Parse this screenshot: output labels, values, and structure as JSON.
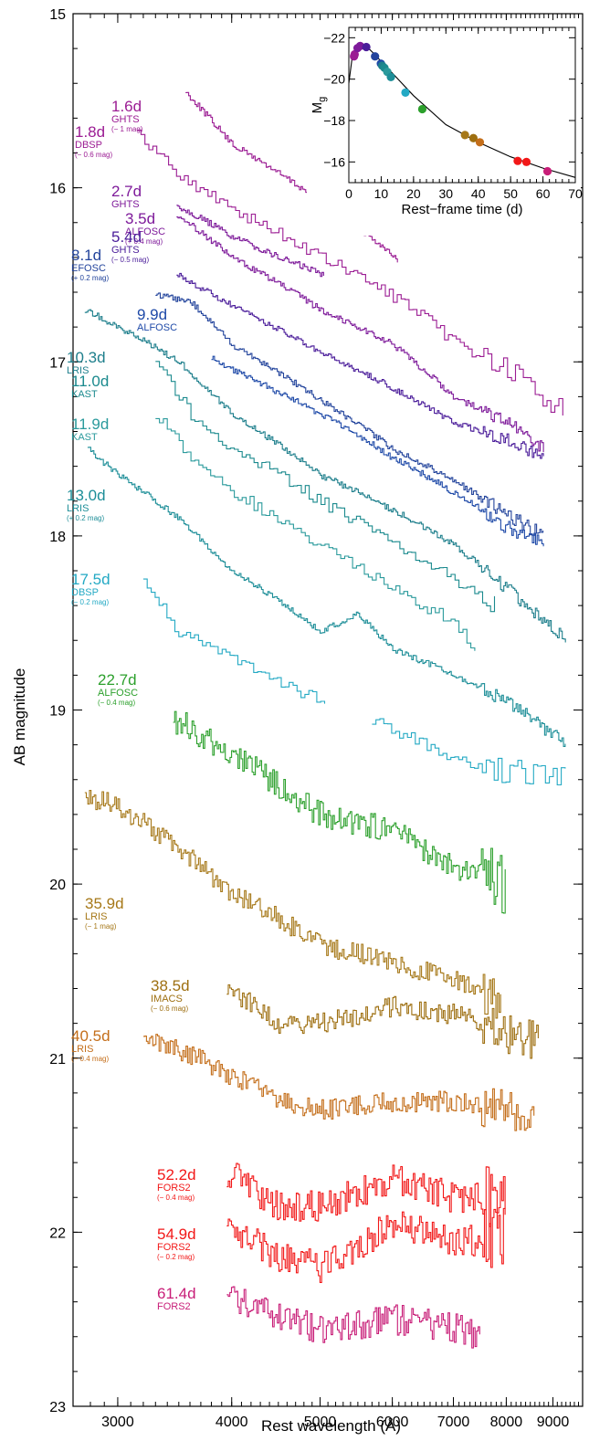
{
  "chart_data": [
    {
      "type": "line",
      "xlabel": "Rest wavelength (Å)",
      "ylabel": "AB magnitude",
      "xscale": "log",
      "xlim": [
        2680,
        9700
      ],
      "ylim": [
        23,
        15
      ],
      "x_ticks": [
        3000,
        4000,
        5000,
        6000,
        7000,
        8000,
        9000
      ],
      "y_ticks": [
        15,
        16,
        17,
        18,
        19,
        20,
        21,
        22,
        23
      ],
      "grid": false,
      "series": [
        {
          "epoch": "1.6d",
          "instrument": "GHTS",
          "offset": "(− 1 mag)",
          "color": "#9b1c93",
          "x": [
            3560,
            4000,
            5000,
            6000,
            6100
          ],
          "y": [
            15.45,
            15.75,
            16.08,
            16.38,
            16.45
          ]
        },
        {
          "epoch": "1.8d",
          "instrument": "DBSP",
          "offset": "(− 0.6 mag)",
          "color": "#9b1c93",
          "x": [
            3150,
            3600,
            4200,
            5000,
            6000,
            7000,
            8000,
            9300
          ],
          "y": [
            15.7,
            15.98,
            16.18,
            16.4,
            16.62,
            16.88,
            17.05,
            17.3
          ]
        },
        {
          "epoch": "2.7d",
          "instrument": "GHTS",
          "offset": "",
          "color": "#7e1a9a",
          "x": [
            3480,
            4000,
            4500,
            5050
          ],
          "y": [
            16.1,
            16.28,
            16.4,
            16.5
          ]
        },
        {
          "epoch": "3.5d",
          "instrument": "ALFOSC",
          "offset": "(+ 0.4 mag)",
          "color": "#7e1a9a",
          "x": [
            3480,
            4000,
            5000,
            6000,
            6500,
            7000,
            8000,
            8800
          ],
          "y": [
            16.15,
            16.4,
            16.7,
            16.9,
            17.05,
            17.2,
            17.35,
            17.5
          ]
        },
        {
          "epoch": "5.4d",
          "instrument": "GHTS",
          "offset": "(− 0.5 mag)",
          "color": "#4b1d9a",
          "x": [
            3480,
            4000,
            5000,
            6000,
            7000,
            8000,
            8800
          ],
          "y": [
            16.5,
            16.68,
            16.95,
            17.15,
            17.35,
            17.45,
            17.55
          ]
        },
        {
          "epoch": "8.1d",
          "instrument": "EFOSC",
          "offset": "(+ 0.2 mag)",
          "color": "#23449c",
          "x": [
            3300,
            3600,
            4000,
            5000,
            6000,
            7000,
            8000,
            8800
          ],
          "y": [
            16.62,
            16.65,
            16.9,
            17.22,
            17.5,
            17.68,
            17.88,
            18.0
          ]
        },
        {
          "epoch": "9.9d",
          "instrument": "ALFOSC",
          "offset": "",
          "color": "#1f4aa8",
          "x": [
            3800,
            4200,
            5000,
            6000,
            7000,
            8000,
            8800
          ],
          "y": [
            16.98,
            17.1,
            17.3,
            17.55,
            17.75,
            17.95,
            18.05
          ]
        },
        {
          "epoch": "10.3d",
          "instrument": "LRIS",
          "offset": "",
          "color": "#1e7f8c",
          "x": [
            2760,
            3000,
            3500,
            4000,
            5000,
            6000,
            7000,
            8000,
            9300
          ],
          "y": [
            16.7,
            16.8,
            17.0,
            17.3,
            17.65,
            17.85,
            18.05,
            18.3,
            18.6
          ]
        },
        {
          "epoch": "11.0d",
          "instrument": "KAST",
          "offset": "",
          "color": "#1b8a8e",
          "x": [
            3300,
            3600,
            4000,
            5000,
            6000,
            7000,
            7800
          ],
          "y": [
            17.0,
            17.3,
            17.5,
            17.8,
            18.05,
            18.25,
            18.4
          ]
        },
        {
          "epoch": "11.9d",
          "instrument": "KAST",
          "offset": "",
          "color": "#2a9a9c",
          "x": [
            3300,
            3600,
            4000,
            5000,
            6000,
            7000,
            7400
          ],
          "y": [
            17.3,
            17.55,
            17.75,
            18.05,
            18.3,
            18.5,
            18.65
          ]
        },
        {
          "epoch": "13.0d",
          "instrument": "LRIS",
          "offset": "(+ 0.2 mag)",
          "color": "#1d8e98",
          "x": [
            2780,
            3000,
            3500,
            4000,
            5000,
            5500,
            6000,
            7000,
            8000,
            9300
          ],
          "y": [
            17.5,
            17.65,
            17.9,
            18.2,
            18.55,
            18.45,
            18.65,
            18.8,
            18.95,
            19.2
          ]
        },
        {
          "epoch": "17.5d",
          "instrument": "DBSP",
          "offset": "(− 0.2 mag)",
          "color": "#23a9c4",
          "x": [
            3200,
            3500,
            4000,
            4500,
            5100
          ],
          "y": [
            18.25,
            18.55,
            18.7,
            18.85,
            18.95
          ]
        },
        {
          "epoch": "17.5d",
          "instrument": "DBSP",
          "offset": "(− 0.2 mag)",
          "color": "#23a9c4",
          "x": [
            5700,
            6500,
            7500,
            8500,
            9300
          ],
          "y": [
            19.05,
            19.2,
            19.35,
            19.35,
            19.4
          ]
        },
        {
          "epoch": "22.7d",
          "instrument": "ALFOSC",
          "offset": "(− 0.4 mag)",
          "color": "#2ca02c",
          "x": [
            3450,
            4000,
            5000,
            6000,
            7000,
            8000
          ],
          "y": [
            19.05,
            19.25,
            19.6,
            19.7,
            19.9,
            20.0
          ]
        },
        {
          "epoch": "35.9d",
          "instrument": "LRIS",
          "offset": "(− 1 mag)",
          "color": "#a67818",
          "x": [
            2760,
            3000,
            3500,
            4000,
            5000,
            6000,
            7000,
            7900
          ],
          "y": [
            19.5,
            19.55,
            19.8,
            20.05,
            20.35,
            20.45,
            20.55,
            20.7
          ]
        },
        {
          "epoch": "38.5d",
          "instrument": "IMACS",
          "offset": "(− 0.6 mag)",
          "color": "#9e6f10",
          "x": [
            3950,
            4500,
            5000,
            6000,
            7000,
            8000,
            8700
          ],
          "y": [
            20.6,
            20.8,
            20.8,
            20.7,
            20.75,
            20.85,
            20.9
          ]
        },
        {
          "epoch": "40.5d",
          "instrument": "LRIS",
          "offset": "(− 0.4 mag)",
          "color": "#c46e1a",
          "x": [
            3200,
            3500,
            4000,
            4500,
            5000,
            6000,
            7000,
            8000,
            8600
          ],
          "y": [
            20.9,
            20.95,
            21.1,
            21.25,
            21.3,
            21.25,
            21.25,
            21.3,
            21.4
          ]
        },
        {
          "epoch": "52.2d",
          "instrument": "FORS2",
          "offset": "(− 0.4 mag)",
          "color": "#f21818",
          "x": [
            3950,
            4500,
            5000,
            6000,
            7000,
            8000
          ],
          "y": [
            21.65,
            21.85,
            21.85,
            21.7,
            21.8,
            21.8
          ]
        },
        {
          "epoch": "54.9d",
          "instrument": "FORS2",
          "offset": "(− 0.2 mag)",
          "color": "#f21818",
          "x": [
            3950,
            4500,
            5000,
            6000,
            7000,
            8000
          ],
          "y": [
            21.95,
            22.15,
            22.2,
            21.95,
            22.05,
            22.05
          ]
        },
        {
          "epoch": "61.4d",
          "instrument": "FORS2",
          "offset": "",
          "color": "#c81e78",
          "x": [
            3950,
            4500,
            5000,
            6000,
            7000,
            7500
          ],
          "y": [
            22.35,
            22.5,
            22.55,
            22.5,
            22.55,
            22.6
          ]
        }
      ]
    },
    {
      "type": "scatter",
      "xlabel": "Rest−frame time (d)",
      "ylabel": "M",
      "ylabel_sub": "g",
      "xlim": [
        0,
        70
      ],
      "ylim": [
        -15,
        -22.5
      ],
      "x_ticks": [
        0,
        10,
        20,
        30,
        40,
        50,
        60,
        70
      ],
      "y_ticks": [
        -22,
        -20,
        -18,
        -16
      ],
      "curve": {
        "x": [
          0,
          1,
          2,
          3,
          4,
          6,
          8,
          10,
          14,
          20,
          30,
          40,
          50,
          60,
          70
        ],
        "y": [
          -19.8,
          -21.0,
          -21.4,
          -21.6,
          -21.62,
          -21.5,
          -21.2,
          -20.85,
          -20.2,
          -19.2,
          -17.8,
          -16.95,
          -16.25,
          -15.7,
          -15.25
        ]
      },
      "points": [
        {
          "x": 1.6,
          "y": -21.1,
          "color": "#9b1c93"
        },
        {
          "x": 1.8,
          "y": -21.2,
          "color": "#9b1c93"
        },
        {
          "x": 2.7,
          "y": -21.5,
          "color": "#7e1a9a"
        },
        {
          "x": 3.5,
          "y": -21.6,
          "color": "#7e1a9a"
        },
        {
          "x": 5.4,
          "y": -21.55,
          "color": "#4b1d9a"
        },
        {
          "x": 8.1,
          "y": -21.1,
          "color": "#23449c"
        },
        {
          "x": 9.9,
          "y": -20.75,
          "color": "#1f4aa8"
        },
        {
          "x": 10.3,
          "y": -20.65,
          "color": "#1e7f8c"
        },
        {
          "x": 11.0,
          "y": -20.55,
          "color": "#1b8a8e"
        },
        {
          "x": 11.9,
          "y": -20.35,
          "color": "#2a9a9c"
        },
        {
          "x": 13.0,
          "y": -20.1,
          "color": "#1d8e98"
        },
        {
          "x": 17.5,
          "y": -19.35,
          "color": "#23a9c4"
        },
        {
          "x": 22.7,
          "y": -18.55,
          "color": "#2ca02c"
        },
        {
          "x": 35.9,
          "y": -17.3,
          "color": "#a67818"
        },
        {
          "x": 38.5,
          "y": -17.15,
          "color": "#9e6f10"
        },
        {
          "x": 40.5,
          "y": -16.95,
          "color": "#c46e1a"
        },
        {
          "x": 52.2,
          "y": -16.05,
          "color": "#f21818"
        },
        {
          "x": 54.9,
          "y": -16.0,
          "color": "#f21818"
        },
        {
          "x": 61.4,
          "y": -15.55,
          "color": "#c81e78"
        }
      ]
    }
  ],
  "labels": [
    {
      "epoch": "1.6d",
      "instrument": "GHTS",
      "offset": "(− 1 mag)",
      "color": "#9b1c93"
    },
    {
      "epoch": "1.8d",
      "instrument": "DBSP",
      "offset": "(− 0.6 mag)",
      "color": "#9b1c93"
    },
    {
      "epoch": "2.7d",
      "instrument": "GHTS",
      "offset": "",
      "color": "#7e1a9a"
    },
    {
      "epoch": "3.5d",
      "instrument": "ALFOSC",
      "offset": "(+ 0.4 mag)",
      "color": "#7e1a9a"
    },
    {
      "epoch": "5.4d",
      "instrument": "GHTS",
      "offset": "(− 0.5 mag)",
      "color": "#4b1d9a"
    },
    {
      "epoch": "8.1d",
      "instrument": "EFOSC",
      "offset": "(+ 0.2 mag)",
      "color": "#23449c"
    },
    {
      "epoch": "9.9d",
      "instrument": "ALFOSC",
      "offset": "",
      "color": "#1f4aa8"
    },
    {
      "epoch": "10.3d",
      "instrument": "LRIS",
      "offset": "",
      "color": "#1e7f8c"
    },
    {
      "epoch": "11.0d",
      "instrument": "KAST",
      "offset": "",
      "color": "#1b8a8e"
    },
    {
      "epoch": "11.9d",
      "instrument": "KAST",
      "offset": "",
      "color": "#2a9a9c"
    },
    {
      "epoch": "13.0d",
      "instrument": "LRIS",
      "offset": "(+ 0.2 mag)",
      "color": "#1d8e98"
    },
    {
      "epoch": "17.5d",
      "instrument": "DBSP",
      "offset": "(− 0.2 mag)",
      "color": "#23a9c4"
    },
    {
      "epoch": "22.7d",
      "instrument": "ALFOSC",
      "offset": "(− 0.4 mag)",
      "color": "#2ca02c"
    },
    {
      "epoch": "35.9d",
      "instrument": "LRIS",
      "offset": "(− 1 mag)",
      "color": "#a67818"
    },
    {
      "epoch": "38.5d",
      "instrument": "IMACS",
      "offset": "(− 0.6 mag)",
      "color": "#9e6f10"
    },
    {
      "epoch": "40.5d",
      "instrument": "LRIS",
      "offset": "(− 0.4 mag)",
      "color": "#c46e1a"
    },
    {
      "epoch": "52.2d",
      "instrument": "FORS2",
      "offset": "(− 0.4 mag)",
      "color": "#f21818"
    },
    {
      "epoch": "54.9d",
      "instrument": "FORS2",
      "offset": "(− 0.2 mag)",
      "color": "#f21818"
    },
    {
      "epoch": "61.4d",
      "instrument": "FORS2",
      "offset": "",
      "color": "#c81e78"
    }
  ]
}
